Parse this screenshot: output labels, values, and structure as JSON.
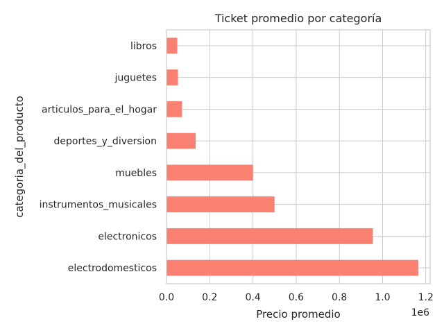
{
  "chart_data": {
    "type": "bar",
    "orientation": "horizontal",
    "title": "Ticket promedio por categoría",
    "xlabel": "Precio promedio",
    "ylabel": "categoria_del_producto",
    "offset_text": "1e6",
    "xlim": [
      0,
      1.22
    ],
    "xticks": [
      "0.0",
      "0.2",
      "0.4",
      "0.6",
      "0.8",
      "1.0",
      "1.2"
    ],
    "grid": true,
    "bar_color": "#fa8072",
    "categories": [
      "electrodomesticos",
      "electronicos",
      "instrumentos_musicales",
      "muebles",
      "deportes_y_diversion",
      "articulos_para_el_hogar",
      "juguetes",
      "libros"
    ],
    "values": [
      1.165,
      0.955,
      0.5,
      0.4,
      0.135,
      0.072,
      0.053,
      0.05
    ]
  }
}
